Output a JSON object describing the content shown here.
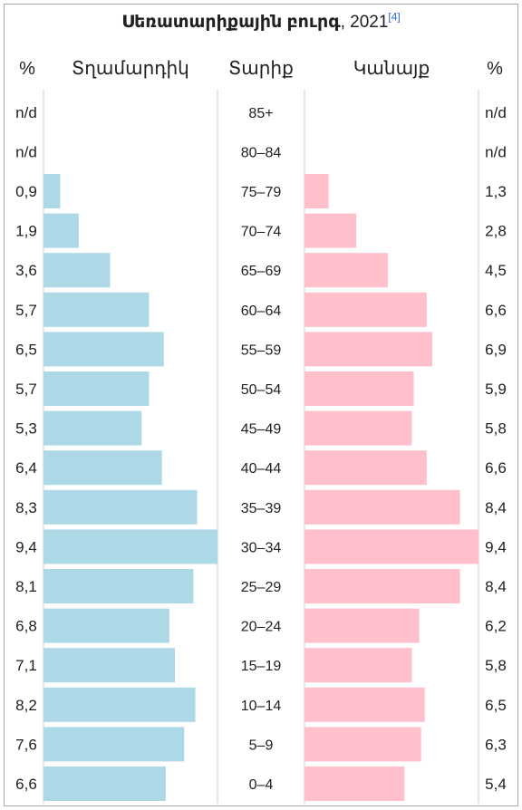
{
  "title": {
    "main": "Սեռատարիքային բուրգ",
    "year": ", 2021",
    "ref": "[4]"
  },
  "headers": {
    "male_percent": "%",
    "male": "Տղամարդիկ",
    "age": "Տարիք",
    "female": "Կանայք",
    "female_percent": "%"
  },
  "colors": {
    "male_bar": "#add8e6",
    "female_bar": "#ffc0cb",
    "divider": "#c8ccd1"
  },
  "chart_data": {
    "type": "bar",
    "orientation": "horizontal-pyramid",
    "categories": [
      "85+",
      "80–84",
      "75–79",
      "70–74",
      "65–69",
      "60–64",
      "55–59",
      "50–54",
      "45–49",
      "40–44",
      "35–39",
      "30–34",
      "25–29",
      "20–24",
      "15–19",
      "10–14",
      "5–9",
      "0–4"
    ],
    "series": [
      {
        "name": "Տղամարդիկ",
        "labels": [
          "n/d",
          "n/d",
          "0,9",
          "1,9",
          "3,6",
          "5,7",
          "6,5",
          "5,7",
          "5,3",
          "6,4",
          "8,3",
          "9,4",
          "8,1",
          "6,8",
          "7,1",
          "8,2",
          "7,6",
          "6,6"
        ],
        "values": [
          null,
          null,
          0.9,
          1.9,
          3.6,
          5.7,
          6.5,
          5.7,
          5.3,
          6.4,
          8.3,
          9.4,
          8.1,
          6.8,
          7.1,
          8.2,
          7.6,
          6.6
        ]
      },
      {
        "name": "Կանայք",
        "labels": [
          "n/d",
          "n/d",
          "1,3",
          "2,8",
          "4,5",
          "6,6",
          "6,9",
          "5,9",
          "5,8",
          "6,6",
          "8,4",
          "9,4",
          "8,4",
          "6,2",
          "5,8",
          "6,5",
          "6,3",
          "5,4"
        ],
        "values": [
          null,
          null,
          1.3,
          2.8,
          4.5,
          6.6,
          6.9,
          5.9,
          5.8,
          6.6,
          8.4,
          9.4,
          8.4,
          6.2,
          5.8,
          6.5,
          6.3,
          5.4
        ]
      }
    ],
    "xlim": [
      0,
      9.4
    ]
  }
}
